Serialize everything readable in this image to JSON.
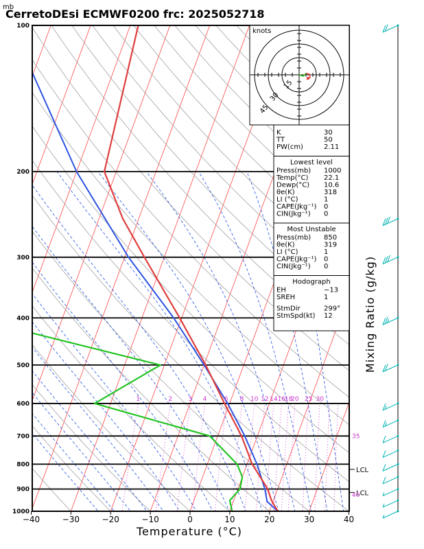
{
  "header": {
    "unit_mb": "mb",
    "title": "CerretoDEsi ECMWF0200  frc: 2025052718"
  },
  "chart_data": {
    "type": "skew-t",
    "xlabel": "Temperature (°C)",
    "ylabel_right": "Mixing Ratio (g/kg)",
    "xlim": [
      -40,
      40
    ],
    "ylim": [
      1000,
      100
    ],
    "x_ticks": [
      "−40",
      "−30",
      "−20",
      "−10",
      "0",
      "10",
      "20",
      "30",
      "40"
    ],
    "p_ticks": [
      "1000",
      "900",
      "800",
      "700",
      "600",
      "500",
      "400",
      "300",
      "200",
      "100"
    ],
    "mixing_ratio_labels": [
      "1",
      "2",
      "3",
      "4",
      "6",
      "8",
      "10",
      "12",
      "14",
      "16",
      "18",
      "20",
      "25",
      "30"
    ],
    "side_labels": [
      "35",
      "40"
    ],
    "lcl_label": "LCL",
    "temperature": [
      {
        "p": 1000,
        "t": 22.1
      },
      {
        "p": 950,
        "t": 19.5
      },
      {
        "p": 900,
        "t": 17.5
      },
      {
        "p": 850,
        "t": 14.5
      },
      {
        "p": 800,
        "t": 11.3
      },
      {
        "p": 700,
        "t": 6.0
      },
      {
        "p": 600,
        "t": -1.3
      },
      {
        "p": 500,
        "t": -9.6
      },
      {
        "p": 400,
        "t": -20.5
      },
      {
        "p": 300,
        "t": -35.0
      },
      {
        "p": 250,
        "t": -44.0
      },
      {
        "p": 200,
        "t": -53.0
      },
      {
        "p": 100,
        "t": -58.0
      }
    ],
    "dewpoint": [
      {
        "p": 1000,
        "t": 10.6
      },
      {
        "p": 950,
        "t": 9.0
      },
      {
        "p": 900,
        "t": 10.5
      },
      {
        "p": 850,
        "t": 10.0
      },
      {
        "p": 800,
        "t": 7.5
      },
      {
        "p": 700,
        "t": -2.0
      },
      {
        "p": 600,
        "t": -34.0
      },
      {
        "p": 500,
        "t": -21.0
      },
      {
        "p": 400,
        "t": -73.0
      },
      {
        "p": 300,
        "t": -82.0
      },
      {
        "p": 200,
        "t": -95.0
      },
      {
        "p": 100,
        "t": -105.0
      }
    ],
    "parcel": [
      {
        "p": 1000,
        "t": 22.1
      },
      {
        "p": 955,
        "t": 18.5
      },
      {
        "p": 900,
        "t": 16.8
      },
      {
        "p": 800,
        "t": 12.5
      },
      {
        "p": 700,
        "t": 6.8
      },
      {
        "p": 600,
        "t": -0.5
      },
      {
        "p": 500,
        "t": -10.0
      },
      {
        "p": 400,
        "t": -22.0
      },
      {
        "p": 300,
        "t": -39.0
      },
      {
        "p": 200,
        "t": -60.0
      },
      {
        "p": 100,
        "t": -90.0
      }
    ],
    "wind_profile": [
      {
        "p": 1000,
        "spd": 3
      },
      {
        "p": 950,
        "spd": 5
      },
      {
        "p": 900,
        "spd": 6
      },
      {
        "p": 850,
        "spd": 8
      },
      {
        "p": 800,
        "spd": 10
      },
      {
        "p": 750,
        "spd": 12
      },
      {
        "p": 700,
        "spd": 12
      },
      {
        "p": 650,
        "spd": 14
      },
      {
        "p": 600,
        "spd": 15
      },
      {
        "p": 500,
        "spd": 20
      },
      {
        "p": 400,
        "spd": 25
      },
      {
        "p": 300,
        "spd": 30
      },
      {
        "p": 250,
        "spd": 30
      },
      {
        "p": 100,
        "spd": 20
      }
    ]
  },
  "hodograph": {
    "unit": "knots",
    "ring_labels": [
      "15",
      "30",
      "45"
    ]
  },
  "indices": [
    {
      "label": "K",
      "value": "30"
    },
    {
      "label": "TT",
      "value": "50"
    },
    {
      "label": "PW(cm)",
      "value": "2.11"
    }
  ],
  "lowest_level": {
    "title": "Lowest level",
    "rows": [
      {
        "label": "Press(mb)",
        "value": "1000"
      },
      {
        "label": "Temp(°C)",
        "value": "22.1"
      },
      {
        "label": "Dewp(°C)",
        "value": "10.6"
      },
      {
        "label": "θe(K)",
        "value": "318"
      },
      {
        "label": "LI (°C)",
        "value": "1"
      },
      {
        "label": "CAPE(Jkg⁻¹)",
        "value": "0"
      },
      {
        "label": "CIN(Jkg⁻¹)",
        "value": "0"
      }
    ]
  },
  "most_unstable": {
    "title": "Most Unstable",
    "rows": [
      {
        "label": "Press(mb)",
        "value": "850"
      },
      {
        "label": "θe(K)",
        "value": "319"
      },
      {
        "label": "LI (°C)",
        "value": "1"
      },
      {
        "label": "CAPE(Jkg⁻¹)",
        "value": "0"
      },
      {
        "label": "CIN(Jkg⁻¹)",
        "value": "0"
      }
    ]
  },
  "hodograph_box": {
    "title": "Hodograph",
    "rows": [
      {
        "label": "EH",
        "value": "−13"
      },
      {
        "label": "SREH",
        "value": "1"
      },
      {
        "label": "StmDir",
        "value": "299°"
      },
      {
        "label": "StmSpd(kt)",
        "value": "12"
      }
    ]
  },
  "colors": {
    "temperature": "#e03c3c",
    "dewpoint": "#22c422",
    "parcel": "#3b3bd6",
    "isotherm": "#ff4545",
    "dry_adiabat": "#a0a0a0",
    "moist_adiabat": "#1f50e0",
    "mixing_ratio": "#cc33cc",
    "wind": "#00b3b3"
  }
}
